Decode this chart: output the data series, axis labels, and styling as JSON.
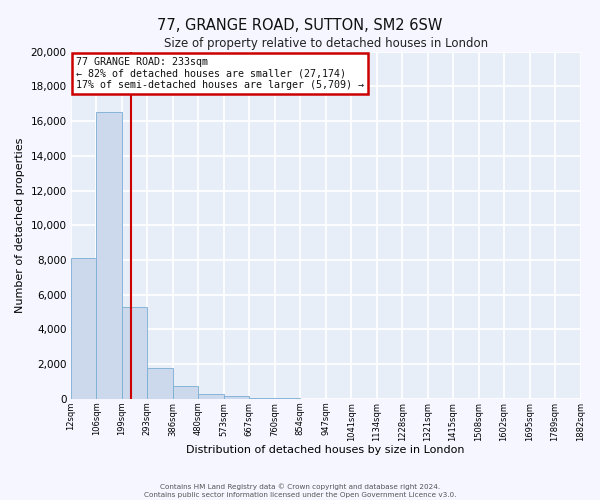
{
  "title": "77, GRANGE ROAD, SUTTON, SM2 6SW",
  "subtitle": "Size of property relative to detached houses in London",
  "xlabel": "Distribution of detached houses by size in London",
  "ylabel": "Number of detached properties",
  "bar_color": "#ccd9ec",
  "bar_edge_color": "#7aadd4",
  "background_color": "#e8eef8",
  "fig_background_color": "#f5f6ff",
  "grid_color": "#ffffff",
  "annotation_box_color": "#cc0000",
  "vline_color": "#cc0000",
  "ylim": [
    0,
    20000
  ],
  "yticks": [
    0,
    2000,
    4000,
    6000,
    8000,
    10000,
    12000,
    14000,
    16000,
    18000,
    20000
  ],
  "bin_labels": [
    "12sqm",
    "106sqm",
    "199sqm",
    "293sqm",
    "386sqm",
    "480sqm",
    "573sqm",
    "667sqm",
    "760sqm",
    "854sqm",
    "947sqm",
    "1041sqm",
    "1134sqm",
    "1228sqm",
    "1321sqm",
    "1415sqm",
    "1508sqm",
    "1602sqm",
    "1695sqm",
    "1789sqm",
    "1882sqm"
  ],
  "bar_heights": [
    8100,
    16500,
    5300,
    1800,
    750,
    300,
    150,
    50,
    50,
    0,
    0,
    0,
    0,
    0,
    0,
    0,
    0,
    0,
    0,
    0
  ],
  "annotation_title": "77 GRANGE ROAD: 233sqm",
  "annotation_line1": "← 82% of detached houses are smaller (27,174)",
  "annotation_line2": "17% of semi-detached houses are larger (5,709) →",
  "footer_line1": "Contains HM Land Registry data © Crown copyright and database right 2024.",
  "footer_line2": "Contains public sector information licensed under the Open Government Licence v3.0.",
  "figsize": [
    6.0,
    5.0
  ],
  "dpi": 100,
  "n_bins": 20
}
